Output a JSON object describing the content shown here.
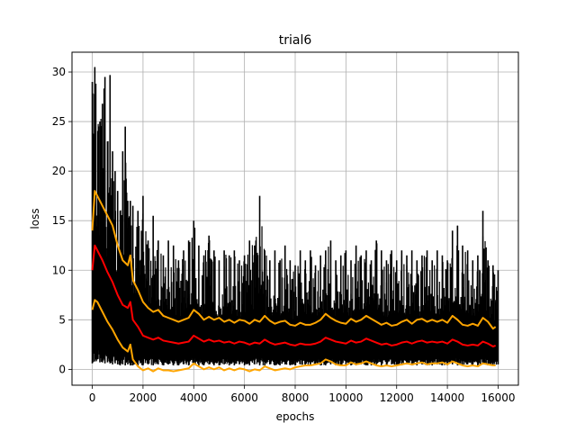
{
  "chart_data": {
    "type": "line",
    "title": "trial6",
    "xlabel": "epochs",
    "ylabel": "loss",
    "xlim": [
      -800,
      16800
    ],
    "ylim": [
      -1.6,
      32.0
    ],
    "xticks": [
      0,
      2000,
      4000,
      6000,
      8000,
      10000,
      12000,
      14000,
      16000
    ],
    "yticks": [
      0,
      5,
      10,
      15,
      20,
      25,
      30
    ],
    "grid": true,
    "series": [
      {
        "color": "#000000",
        "role": "raw-loss",
        "x": [
          0,
          100,
          300,
          400,
          500,
          600,
          700,
          800,
          900,
          1000,
          1100,
          1200,
          1300,
          1400,
          1500,
          1600,
          1800,
          2000,
          2200,
          2400,
          2600,
          2800,
          3000,
          3200,
          3400,
          3600,
          3800,
          4000,
          4200,
          4400,
          4600,
          4800,
          5000,
          5200,
          5400,
          5600,
          5800,
          6000,
          6200,
          6400,
          6600,
          6800,
          7000,
          7200,
          7400,
          7600,
          7800,
          8000,
          8200,
          8400,
          8600,
          8800,
          9000,
          9200,
          9400,
          9600,
          9800,
          10000,
          10200,
          10400,
          10600,
          10800,
          11000,
          11200,
          11400,
          11600,
          11800,
          12000,
          12200,
          12400,
          12600,
          12800,
          13000,
          13200,
          13400,
          13600,
          13800,
          14000,
          14200,
          14400,
          14600,
          14800,
          15000,
          15200,
          15400,
          15600,
          15800,
          16000
        ],
        "low": [
          0.6,
          0.8,
          0.7,
          0.7,
          0.6,
          0.7,
          0.6,
          0.5,
          0.6,
          0.5,
          0.4,
          0.5,
          0.4,
          0.5,
          0.4,
          0.4,
          0.4,
          0.4,
          0.5,
          0.4,
          0.5,
          0.4,
          0.5,
          0.4,
          0.4,
          0.5,
          0.4,
          0.5,
          0.4,
          0.4,
          0.5,
          0.4,
          0.4,
          0.5,
          0.4,
          0.4,
          0.5,
          0.4,
          0.4,
          0.5,
          0.4,
          0.4,
          0.5,
          0.4,
          0.4,
          0.5,
          0.4,
          0.4,
          0.5,
          0.4,
          0.4,
          0.5,
          0.4,
          0.4,
          0.5,
          0.4,
          0.4,
          0.5,
          0.4,
          0.4,
          0.5,
          0.4,
          0.4,
          0.5,
          0.4,
          0.4,
          0.5,
          0.4,
          0.4,
          0.5,
          0.4,
          0.4,
          0.5,
          0.4,
          0.4,
          0.5,
          0.4,
          0.4,
          0.5,
          0.4,
          0.4,
          0.5,
          0.4,
          0.4,
          0.5,
          0.4,
          0.4,
          0.5
        ],
        "high": [
          29.0,
          30.5,
          25.0,
          26.8,
          29.5,
          23.0,
          29.7,
          22.0,
          20.0,
          18.0,
          16.0,
          22.0,
          24.5,
          17.0,
          17.0,
          16.5,
          16.0,
          17.5,
          13.0,
          15.5,
          13.0,
          11.5,
          13.0,
          12.5,
          11.0,
          12.0,
          13.0,
          15.0,
          12.5,
          11.5,
          13.5,
          12.0,
          11.0,
          12.0,
          11.5,
          12.0,
          11.0,
          11.5,
          13.0,
          12.5,
          17.5,
          12.0,
          11.0,
          12.0,
          11.0,
          12.5,
          11.0,
          10.5,
          12.0,
          11.0,
          12.0,
          10.5,
          11.5,
          12.0,
          13.0,
          11.0,
          11.5,
          12.0,
          11.0,
          12.5,
          11.5,
          12.0,
          11.0,
          13.0,
          12.0,
          11.0,
          12.0,
          11.0,
          12.0,
          11.5,
          12.0,
          11.0,
          11.5,
          12.0,
          11.0,
          12.0,
          11.5,
          11.0,
          14.0,
          14.5,
          12.5,
          12.0,
          11.0,
          11.5,
          16.0,
          11.0,
          10.5,
          10.0
        ]
      },
      {
        "color": "#ff0000",
        "role": "mean",
        "x": [
          0,
          100,
          200,
          400,
          600,
          800,
          1000,
          1200,
          1400,
          1500,
          1600,
          1800,
          2000,
          2200,
          2400,
          2600,
          2800,
          3000,
          3200,
          3400,
          3600,
          3800,
          4000,
          4200,
          4400,
          4600,
          4800,
          5000,
          5200,
          5400,
          5600,
          5800,
          6000,
          6200,
          6400,
          6600,
          6800,
          7000,
          7200,
          7400,
          7600,
          7800,
          8000,
          8200,
          8400,
          8600,
          8800,
          9000,
          9200,
          9400,
          9600,
          9800,
          10000,
          10200,
          10400,
          10600,
          10800,
          11000,
          11200,
          11400,
          11600,
          11800,
          12000,
          12200,
          12400,
          12600,
          12800,
          13000,
          13200,
          13400,
          13600,
          13800,
          14000,
          14200,
          14400,
          14600,
          14800,
          15000,
          15200,
          15400,
          15600,
          15800,
          15900
        ],
        "y": [
          10.0,
          12.5,
          12.0,
          11.0,
          9.8,
          8.8,
          7.5,
          6.5,
          6.2,
          6.8,
          5.0,
          4.3,
          3.4,
          3.2,
          3.0,
          3.2,
          2.9,
          2.8,
          2.7,
          2.6,
          2.7,
          2.8,
          3.4,
          3.1,
          2.8,
          3.0,
          2.8,
          2.9,
          2.7,
          2.8,
          2.6,
          2.8,
          2.7,
          2.5,
          2.7,
          2.6,
          3.0,
          2.7,
          2.5,
          2.6,
          2.7,
          2.5,
          2.4,
          2.6,
          2.5,
          2.5,
          2.6,
          2.8,
          3.2,
          3.0,
          2.8,
          2.7,
          2.6,
          2.9,
          2.7,
          2.8,
          3.1,
          2.9,
          2.7,
          2.5,
          2.6,
          2.4,
          2.5,
          2.7,
          2.8,
          2.6,
          2.8,
          2.9,
          2.7,
          2.8,
          2.7,
          2.8,
          2.6,
          3.0,
          2.8,
          2.5,
          2.4,
          2.5,
          2.4,
          2.8,
          2.6,
          2.3,
          2.4
        ]
      },
      {
        "color": "#ffa500",
        "role": "upper-band",
        "x": [
          0,
          100,
          200,
          400,
          600,
          800,
          1000,
          1200,
          1400,
          1500,
          1600,
          1800,
          2000,
          2200,
          2400,
          2600,
          2800,
          3000,
          3200,
          3400,
          3600,
          3800,
          4000,
          4200,
          4400,
          4600,
          4800,
          5000,
          5200,
          5400,
          5600,
          5800,
          6000,
          6200,
          6400,
          6600,
          6800,
          7000,
          7200,
          7400,
          7600,
          7800,
          8000,
          8200,
          8400,
          8600,
          8800,
          9000,
          9200,
          9400,
          9600,
          9800,
          10000,
          10200,
          10400,
          10600,
          10800,
          11000,
          11200,
          11400,
          11600,
          11800,
          12000,
          12200,
          12400,
          12600,
          12800,
          13000,
          13200,
          13400,
          13600,
          13800,
          14000,
          14200,
          14400,
          14600,
          14800,
          15000,
          15200,
          15400,
          15600,
          15800,
          15900
        ],
        "y": [
          14.0,
          18.0,
          17.5,
          16.5,
          15.5,
          14.5,
          12.5,
          11.0,
          10.5,
          11.5,
          9.0,
          8.0,
          6.8,
          6.2,
          5.8,
          6.0,
          5.4,
          5.2,
          5.0,
          4.8,
          5.0,
          5.2,
          6.0,
          5.6,
          5.0,
          5.3,
          5.0,
          5.2,
          4.8,
          5.0,
          4.7,
          5.0,
          4.9,
          4.6,
          5.0,
          4.8,
          5.4,
          4.9,
          4.6,
          4.8,
          4.9,
          4.5,
          4.4,
          4.7,
          4.5,
          4.5,
          4.7,
          5.0,
          5.6,
          5.2,
          4.9,
          4.7,
          4.6,
          5.1,
          4.8,
          5.0,
          5.4,
          5.1,
          4.8,
          4.5,
          4.7,
          4.4,
          4.5,
          4.8,
          5.0,
          4.6,
          5.0,
          5.1,
          4.8,
          5.0,
          4.8,
          5.0,
          4.7,
          5.4,
          5.0,
          4.5,
          4.4,
          4.6,
          4.4,
          5.2,
          4.8,
          4.1,
          4.3
        ]
      },
      {
        "color": "#ffa500",
        "role": "lower-band",
        "x": [
          0,
          100,
          200,
          400,
          600,
          800,
          1000,
          1200,
          1400,
          1500,
          1600,
          1800,
          2000,
          2200,
          2400,
          2600,
          2800,
          3000,
          3200,
          3400,
          3600,
          3800,
          4000,
          4200,
          4400,
          4600,
          4800,
          5000,
          5200,
          5400,
          5600,
          5800,
          6000,
          6200,
          6400,
          6600,
          6800,
          7000,
          7200,
          7400,
          7600,
          7800,
          8000,
          8200,
          8400,
          8600,
          8800,
          9000,
          9200,
          9400,
          9600,
          9800,
          10000,
          10200,
          10400,
          10600,
          10800,
          11000,
          11200,
          11400,
          11600,
          11800,
          12000,
          12200,
          12400,
          12600,
          12800,
          13000,
          13200,
          13400,
          13600,
          13800,
          14000,
          14200,
          14400,
          14600,
          14800,
          15000,
          15200,
          15400,
          15600,
          15800,
          15900
        ],
        "y": [
          6.0,
          7.0,
          6.8,
          5.8,
          4.8,
          4.0,
          3.0,
          2.2,
          1.8,
          2.5,
          1.0,
          0.3,
          -0.1,
          0.1,
          -0.2,
          0.1,
          -0.1,
          -0.1,
          -0.2,
          -0.1,
          0.0,
          0.1,
          0.6,
          0.3,
          0.0,
          0.2,
          0.0,
          0.2,
          -0.1,
          0.1,
          -0.1,
          0.1,
          0.0,
          -0.2,
          0.0,
          -0.1,
          0.3,
          0.1,
          -0.1,
          0.0,
          0.1,
          0.0,
          0.2,
          0.3,
          0.4,
          0.4,
          0.5,
          0.6,
          1.0,
          0.8,
          0.5,
          0.4,
          0.4,
          0.7,
          0.5,
          0.6,
          0.8,
          0.6,
          0.4,
          0.3,
          0.4,
          0.3,
          0.4,
          0.5,
          0.6,
          0.5,
          0.6,
          0.7,
          0.5,
          0.6,
          0.6,
          0.7,
          0.5,
          0.8,
          0.6,
          0.4,
          0.3,
          0.4,
          0.3,
          0.6,
          0.5,
          0.4,
          0.4
        ]
      }
    ]
  }
}
